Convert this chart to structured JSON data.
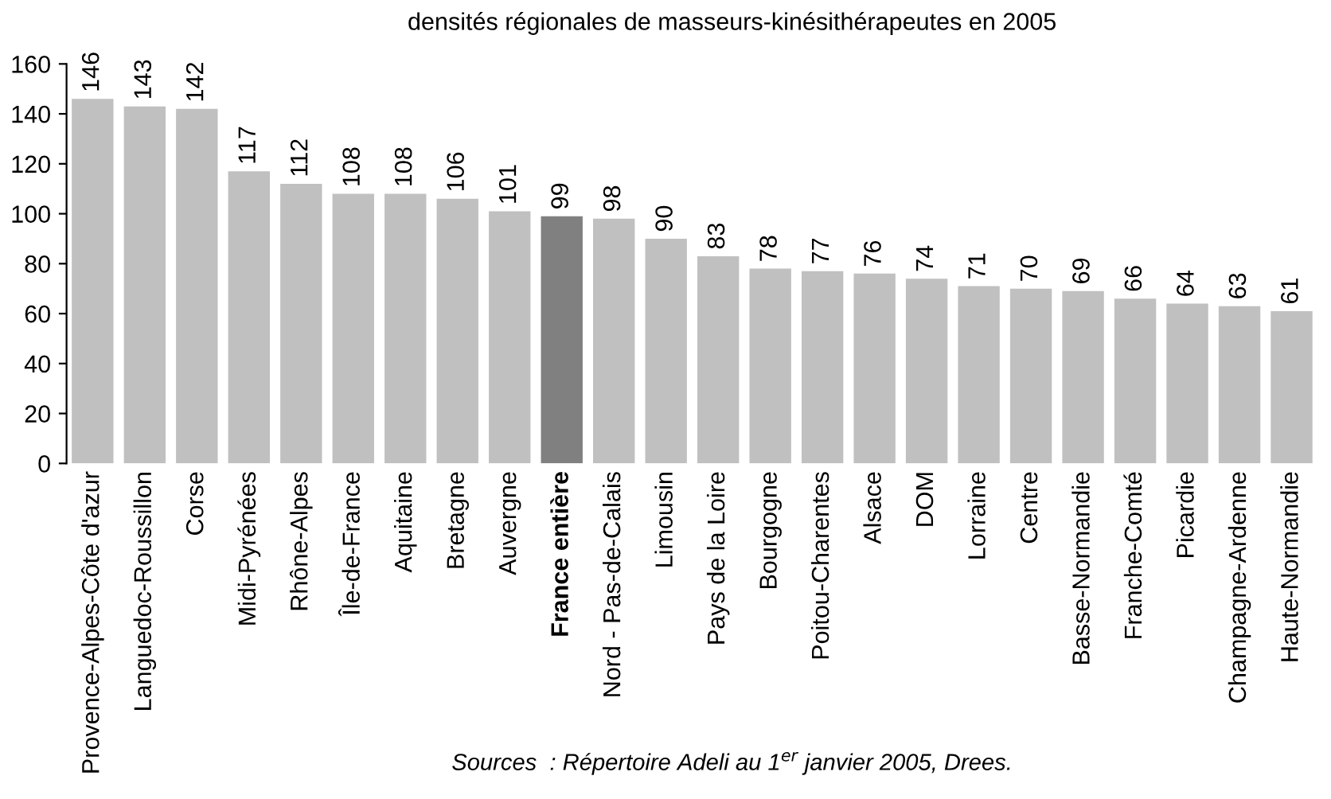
{
  "chart_data": {
    "type": "bar",
    "title": "densités régionales de masseurs-kinésithérapeutes en 2005",
    "categories": [
      "Provence-Alpes-Côte d'azur",
      "Languedoc-Roussillon",
      "Corse",
      "Midi-Pyrénées",
      "Rhône-Alpes",
      "Île-de-France",
      "Aquitaine",
      "Bretagne",
      "Auvergne",
      "France entière",
      "Nord - Pas-de-Calais",
      "Limousin",
      "Pays de la Loire",
      "Bourgogne",
      "Poitou-Charentes",
      "Alsace",
      "DOM",
      "Lorraine",
      "Centre",
      "Basse-Normandie",
      "Franche-Comté",
      "Picardie",
      "Champagne-Ardenne",
      "Haute-Normandie"
    ],
    "values": [
      146,
      143,
      142,
      117,
      112,
      108,
      108,
      106,
      101,
      99,
      98,
      90,
      83,
      78,
      77,
      76,
      74,
      71,
      70,
      69,
      66,
      64,
      63,
      61
    ],
    "colors": [
      "#c0c0c0",
      "#c0c0c0",
      "#c0c0c0",
      "#c0c0c0",
      "#c0c0c0",
      "#c0c0c0",
      "#c0c0c0",
      "#c0c0c0",
      "#c0c0c0",
      "#808080",
      "#c0c0c0",
      "#c0c0c0",
      "#c0c0c0",
      "#c0c0c0",
      "#c0c0c0",
      "#c0c0c0",
      "#c0c0c0",
      "#c0c0c0",
      "#c0c0c0",
      "#c0c0c0",
      "#c0c0c0",
      "#c0c0c0",
      "#c0c0c0",
      "#c0c0c0"
    ],
    "ylim": [
      0,
      160
    ],
    "yticks": [
      0,
      20,
      40,
      60,
      80,
      100,
      120,
      140,
      160
    ],
    "data_labels": true,
    "grid": false,
    "annotations": [
      "Sources  : Répertoire Adeli au 1$^{er}$ janvier 2005, Drees."
    ]
  }
}
